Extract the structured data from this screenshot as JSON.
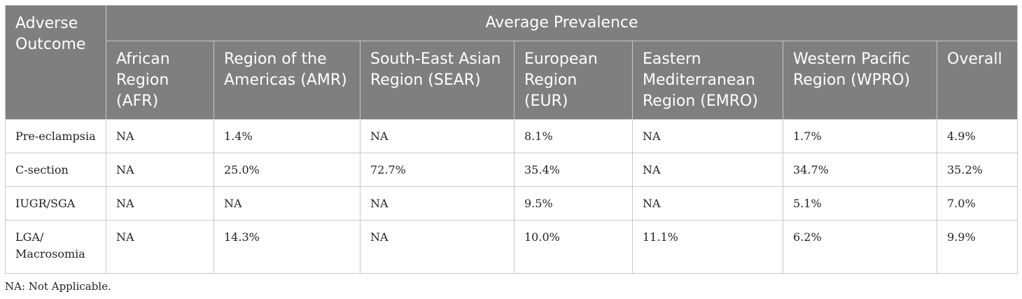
{
  "table": {
    "header": {
      "outcome_label": "Adverse Outcome",
      "group_label": "Average Prevalence",
      "regions": [
        "African Region (AFR)",
        "Region of the Americas (AMR)",
        "South-East Asian Region (SEAR)",
        "European Region (EUR)",
        "Eastern Mediterranean Region (EMRO)",
        "Western Pacific Region (WPRO)",
        "Overall"
      ]
    },
    "rows": [
      {
        "outcome": "Pre-eclampsia",
        "values": [
          "NA",
          "1.4%",
          "NA",
          "8.1%",
          "NA",
          "1.7%",
          "4.9%"
        ]
      },
      {
        "outcome": "C-section",
        "values": [
          "NA",
          "25.0%",
          "72.7%",
          "35.4%",
          "NA",
          "34.7%",
          "35.2%"
        ]
      },
      {
        "outcome": "IUGR/SGA",
        "values": [
          "NA",
          "NA",
          "NA",
          "9.5%",
          "NA",
          "5.1%",
          "7.0%"
        ]
      },
      {
        "outcome": "LGA/ Macrosomia",
        "values": [
          "NA",
          "14.3%",
          "NA",
          "10.0%",
          "11.1%",
          "6.2%",
          "9.9%"
        ]
      }
    ]
  },
  "footnote": "NA: Not Applicable."
}
